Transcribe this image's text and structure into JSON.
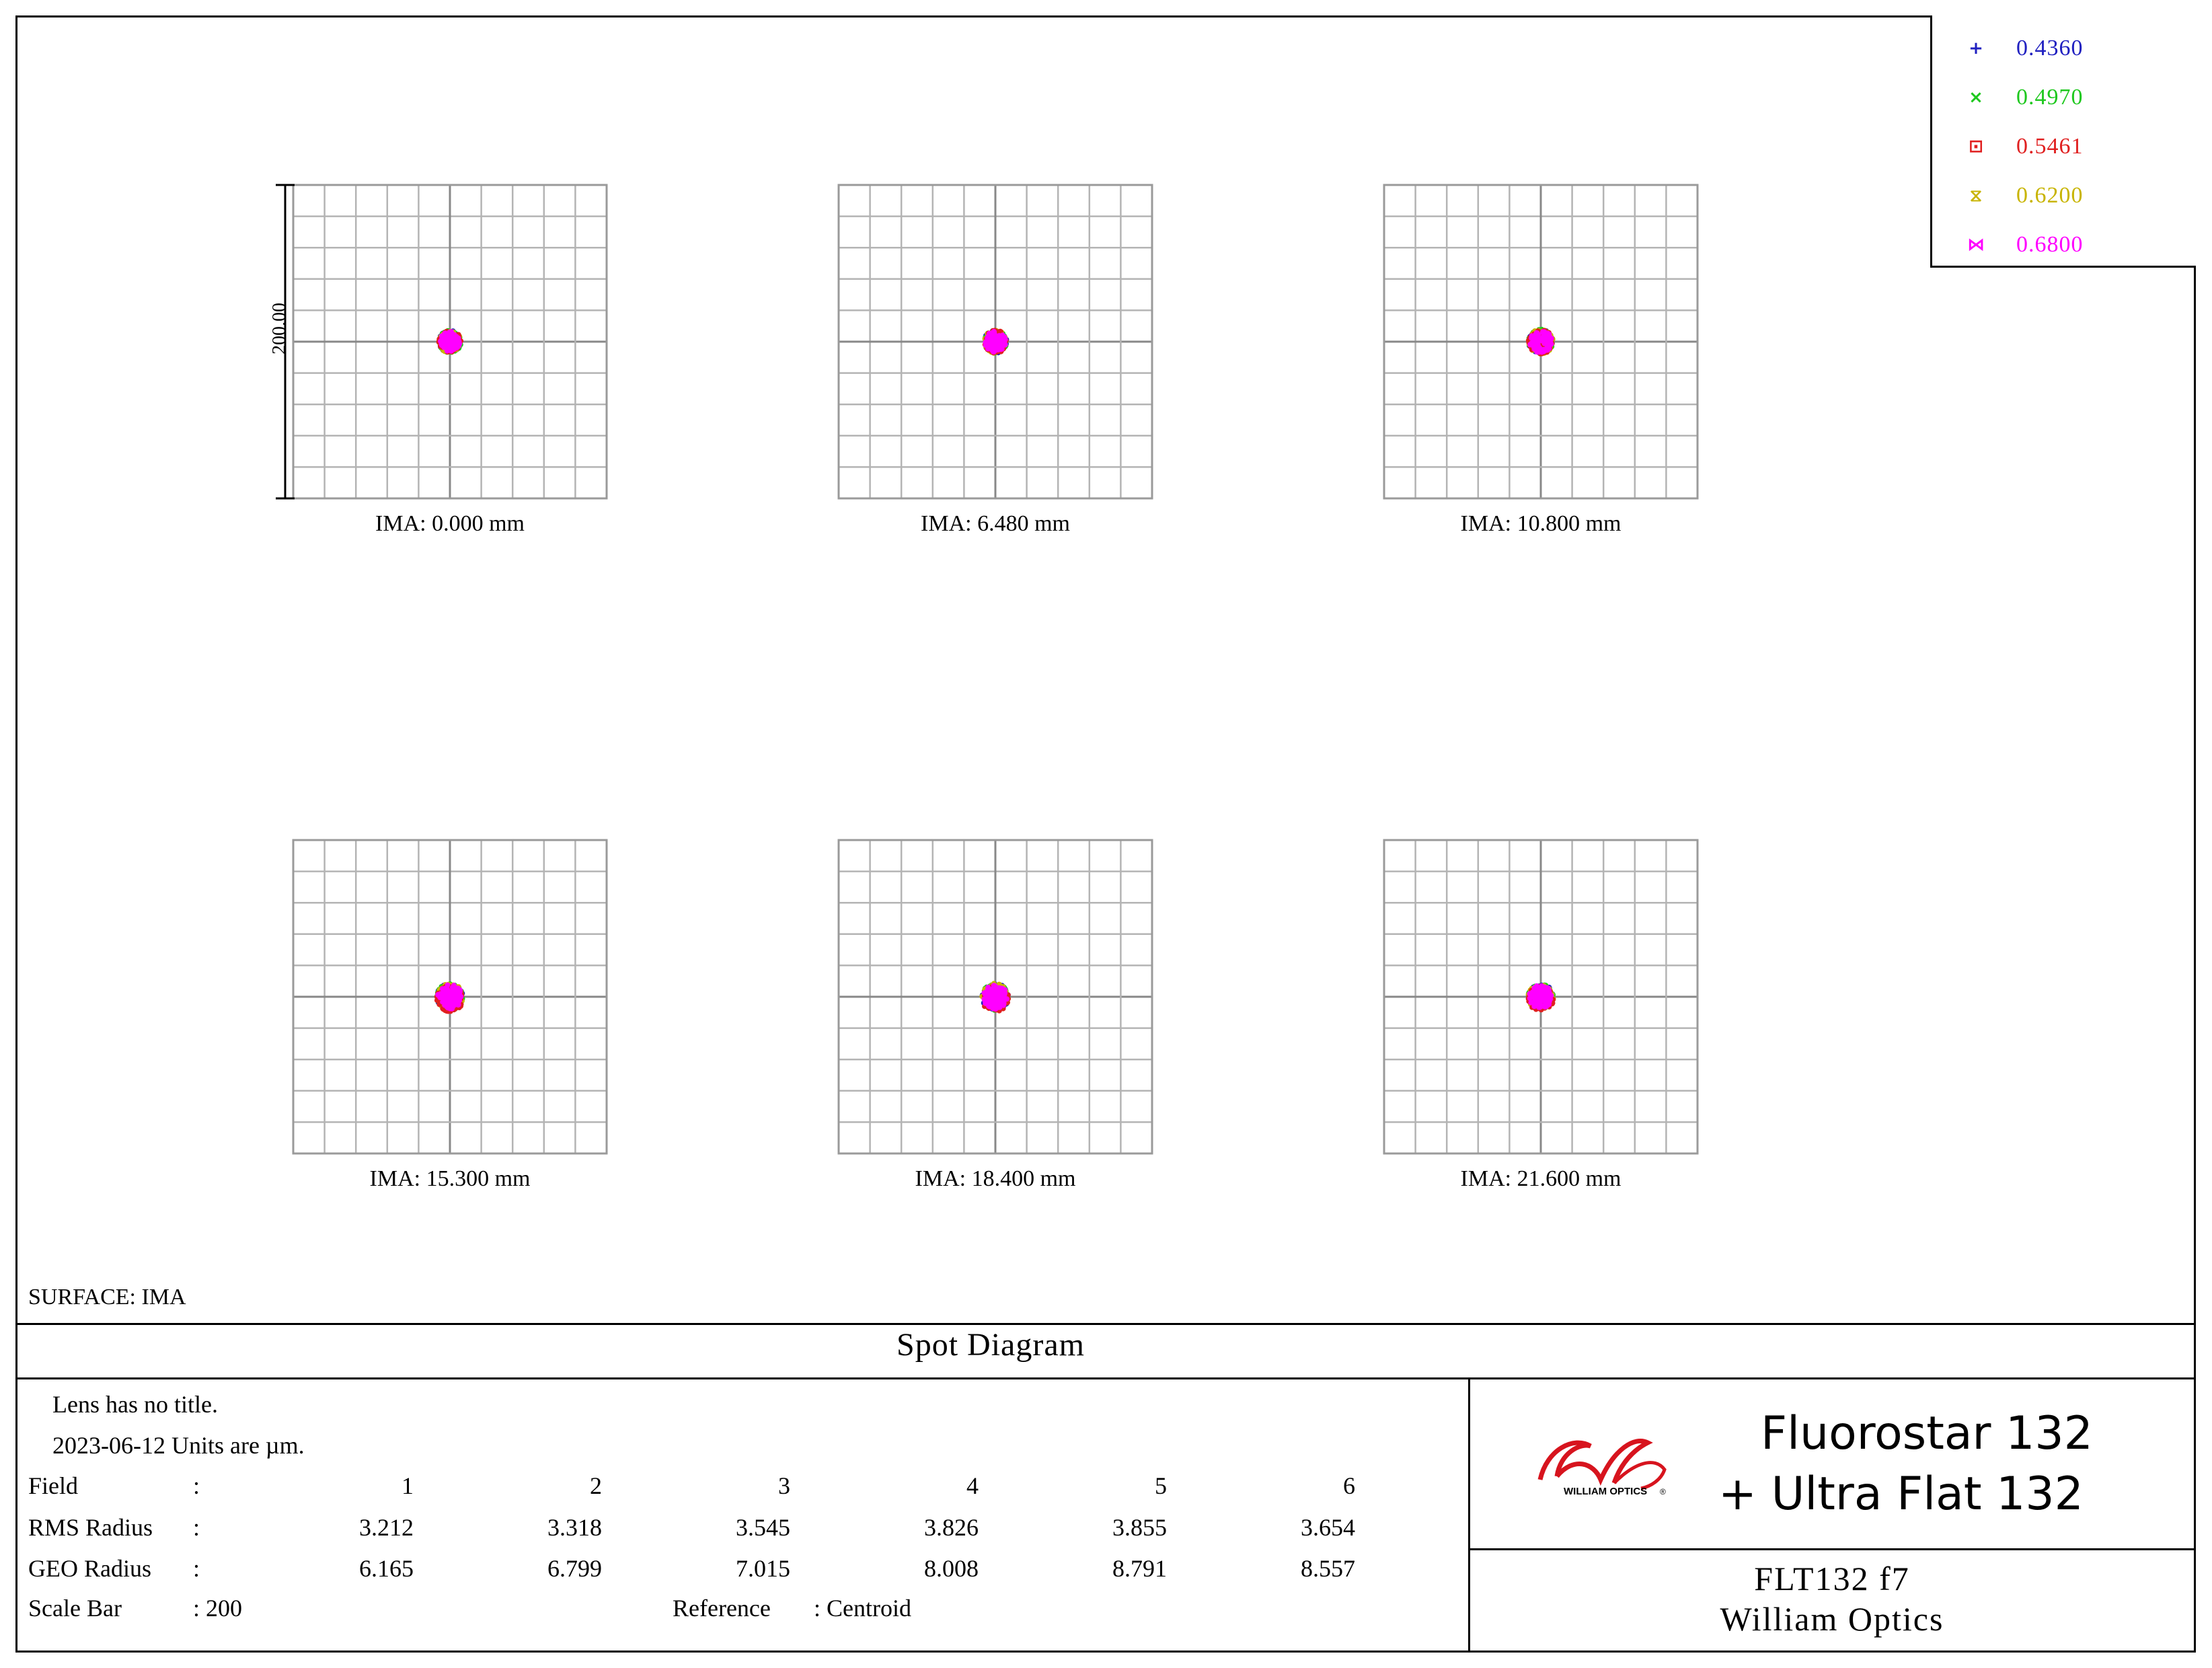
{
  "chart_data": {
    "type": "scatter",
    "title": "Spot Diagram",
    "surface": "SURFACE: IMA",
    "scale_bar_label": "200.00",
    "fields": [
      {
        "label": "IMA:  0.000 mm"
      },
      {
        "label": "IMA:  6.480 mm"
      },
      {
        "label": "IMA:  10.800 mm"
      },
      {
        "label": "IMA:  15.300 mm"
      },
      {
        "label": "IMA:  18.400 mm"
      },
      {
        "label": "IMA:  21.600 mm"
      }
    ],
    "legend": [
      {
        "symbol": "+",
        "value": "0.4360",
        "color": "#2020c0"
      },
      {
        "symbol": "×",
        "value": "0.4970",
        "color": "#1ec81e"
      },
      {
        "symbol": "⊡",
        "value": "0.5461",
        "color": "#e02020"
      },
      {
        "symbol": "⧖",
        "value": "0.6200",
        "color": "#c8b400"
      },
      {
        "symbol": "⋈",
        "value": "0.6800",
        "color": "#ff00ff"
      }
    ],
    "series": [
      {
        "name": "0.4360",
        "color": "#2020c0",
        "rms_um": [
          3.212,
          3.318,
          3.545,
          3.826,
          3.855,
          3.654
        ]
      },
      {
        "name": "0.4970",
        "color": "#1ec81e",
        "rms_um": [
          3.212,
          3.318,
          3.545,
          3.826,
          3.855,
          3.654
        ]
      },
      {
        "name": "0.5461",
        "color": "#e02020",
        "rms_um": [
          3.212,
          3.318,
          3.545,
          3.826,
          3.855,
          3.654
        ]
      },
      {
        "name": "0.6200",
        "color": "#c8b400",
        "rms_um": [
          3.212,
          3.318,
          3.545,
          3.826,
          3.855,
          3.654
        ]
      },
      {
        "name": "0.6800",
        "color": "#ff00ff",
        "rms_um": [
          3.212,
          3.318,
          3.545,
          3.826,
          3.855,
          3.654
        ]
      }
    ],
    "grid": true
  },
  "info": {
    "lens_title": "Lens has no title.",
    "date_units": "2023-06-12  Units are µm.",
    "field_label": "Field",
    "rms_label": "RMS Radius",
    "geo_label": "GEO Radius",
    "scale_label": "Scale Bar",
    "colon": ":",
    "scale_value": ": 200",
    "reference_label": "Reference",
    "reference_value": ":   Centroid",
    "field_numbers": [
      "1",
      "2",
      "3",
      "4",
      "5",
      "6"
    ],
    "rms_values": [
      "3.212",
      "3.318",
      "3.545",
      "3.826",
      "3.855",
      "3.654"
    ],
    "geo_values": [
      "6.165",
      "6.799",
      "7.015",
      "8.008",
      "8.791",
      "8.557"
    ]
  },
  "branding": {
    "logo_text": "WILLIAM OPTICS",
    "logo_mark": "®",
    "line1": "Fluorostar 132",
    "line2": "+  Ultra Flat 132",
    "model": "FLT132 f7",
    "company": "William Optics"
  }
}
